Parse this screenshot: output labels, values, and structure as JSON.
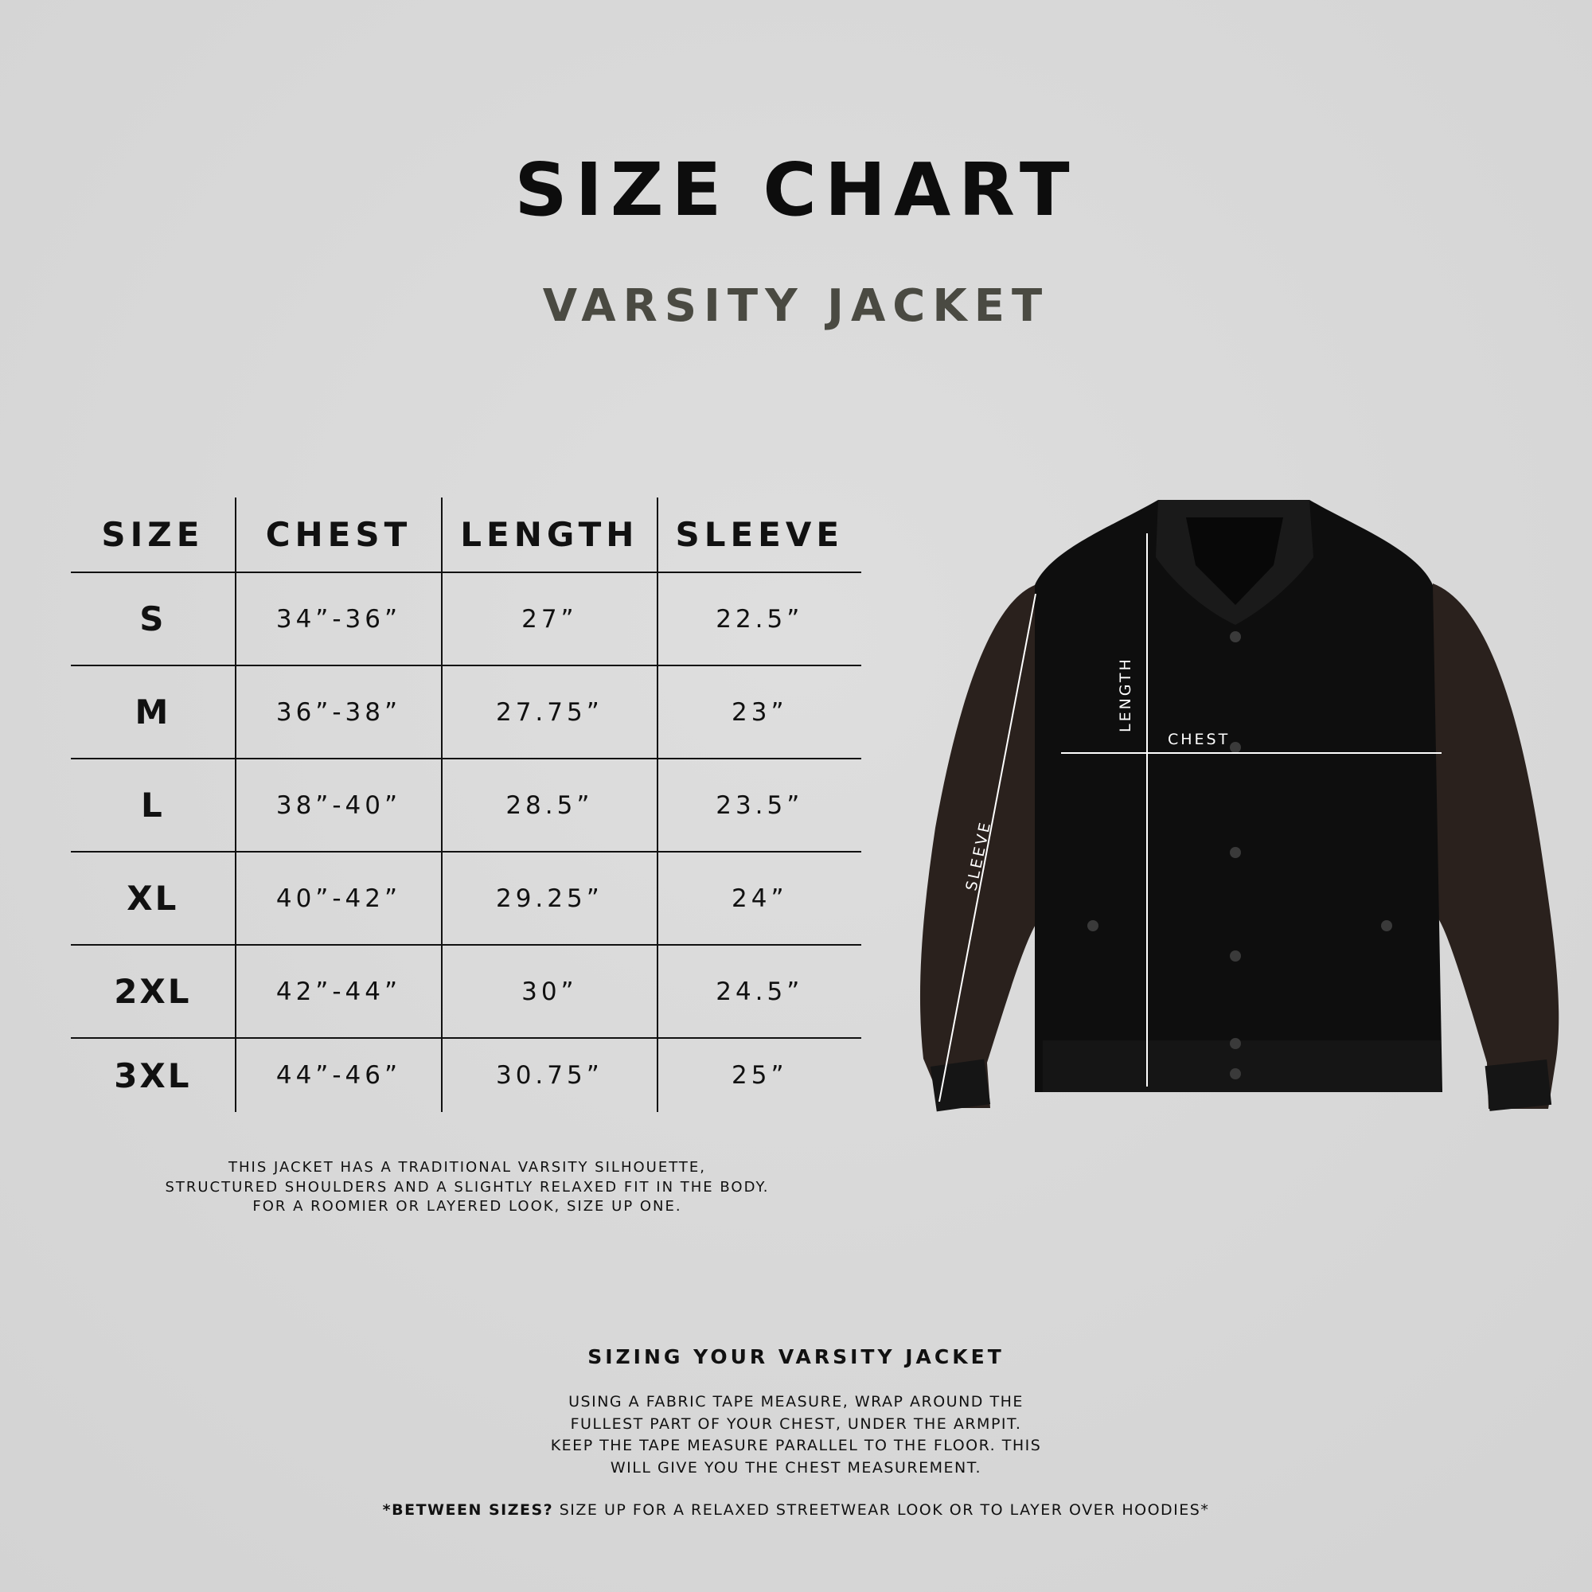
{
  "header": {
    "title": "SIZE CHART",
    "subtitle": "VARSITY JACKET"
  },
  "table": {
    "columns": [
      "SIZE",
      "CHEST",
      "LENGTH",
      "SLEEVE"
    ],
    "rows": [
      [
        "S",
        "34”-36”",
        "27”",
        "22.5”"
      ],
      [
        "M",
        "36”-38”",
        "27.75”",
        "23”"
      ],
      [
        "L",
        "38”-40”",
        "28.5”",
        "23.5”"
      ],
      [
        "XL",
        "40”-42”",
        "29.25”",
        "24”"
      ],
      [
        "2XL",
        "42”-44”",
        "30”",
        "24.5”"
      ],
      [
        "3XL",
        "44”-46”",
        "30.75”",
        "25”"
      ]
    ]
  },
  "fit_note": [
    "THIS JACKET HAS A TRADITIONAL VARSITY SILHOUETTE,",
    "STRUCTURED SHOULDERS AND A SLIGHTLY RELAXED FIT IN THE BODY.",
    "FOR A ROOMIER OR LAYERED LOOK, SIZE UP ONE."
  ],
  "diagram": {
    "length_label": "LENGTH",
    "chest_label": "CHEST",
    "sleeve_label": "SLEEVE",
    "body_color": "#0e0e0e",
    "sleeve_color": "#2a211d"
  },
  "howto": {
    "title": "SIZING YOUR VARSITY JACKET",
    "lines": [
      "USING A FABRIC TAPE MEASURE, WRAP AROUND THE",
      "FULLEST PART OF YOUR CHEST, UNDER THE ARMPIT.",
      "KEEP THE TAPE MEASURE PARALLEL TO THE FLOOR. THIS",
      "WILL GIVE YOU THE CHEST MEASUREMENT."
    ],
    "note_bold": "*BETWEEN SIZES?",
    "note_rest": " SIZE UP FOR A RELAXED STREETWEAR LOOK OR TO LAYER OVER HOODIES*"
  }
}
